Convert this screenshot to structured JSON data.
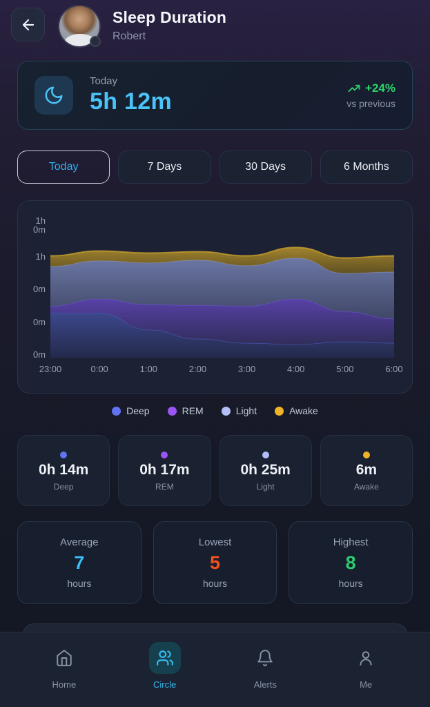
{
  "header": {
    "title": "Sleep Duration",
    "subtitle": "Robert"
  },
  "today_card": {
    "label": "Today",
    "value": "5h 12m",
    "trend": "+24%",
    "trend_caption": "vs previous",
    "trend_color": "#2fd06f",
    "value_color": "#4ac3f8"
  },
  "tabs": {
    "items": [
      {
        "label": "Today",
        "active": true
      },
      {
        "label": "7 Days",
        "active": false
      },
      {
        "label": "30 Days",
        "active": false
      },
      {
        "label": "6 Months",
        "active": false
      }
    ]
  },
  "chart_data": {
    "type": "area",
    "stacked": true,
    "title": "",
    "x": [
      "23:00",
      "0:00",
      "1:00",
      "2:00",
      "3:00",
      "4:00",
      "5:00",
      "6:00"
    ],
    "y_ticks": [
      "1h",
      "0m",
      "1h",
      "0m",
      "0m",
      "0m"
    ],
    "legend_position": "bottom",
    "grid": false,
    "series": [
      {
        "name": "Deep",
        "dot_color": "#6172f3",
        "fill_top": "#3e4a90",
        "fill_bottom": "#252b50",
        "edge": "#4a5ac0",
        "top_fraction": [
          0.32,
          0.32,
          0.2,
          0.135,
          0.105,
          0.095,
          0.115,
          0.105
        ]
      },
      {
        "name": "REM",
        "dot_color": "#9b55f5",
        "fill_top": "#5b43ae",
        "fill_bottom": "#342f60",
        "edge": "#6a4fd0",
        "top_fraction": [
          0.37,
          0.42,
          0.38,
          0.375,
          0.37,
          0.42,
          0.33,
          0.28
        ]
      },
      {
        "name": "Light",
        "dot_color": "#b3c0f8",
        "fill_top": "#707cab",
        "fill_bottom": "#454c6e",
        "edge": "#8a95c4",
        "top_fraction": [
          0.655,
          0.695,
          0.68,
          0.7,
          0.66,
          0.715,
          0.605,
          0.615
        ]
      },
      {
        "name": "Awake",
        "dot_color": "#f0b429",
        "fill_top": "#a8892e",
        "fill_bottom": "#6b581f",
        "edge": "#c79e2b",
        "top_fraction": [
          0.73,
          0.765,
          0.75,
          0.76,
          0.73,
          0.79,
          0.715,
          0.73
        ]
      }
    ]
  },
  "stage_cards": [
    {
      "value": "0h 14m",
      "label": "Deep"
    },
    {
      "value": "0h 17m",
      "label": "REM"
    },
    {
      "value": "0h 25m",
      "label": "Light"
    },
    {
      "value": "6m",
      "label": "Awake"
    }
  ],
  "summary_cards": [
    {
      "label": "Average",
      "value": "7",
      "unit": "hours",
      "color": "#38bdf8"
    },
    {
      "label": "Lowest",
      "value": "5",
      "unit": "hours",
      "color": "#f4511e"
    },
    {
      "label": "Highest",
      "value": "8",
      "unit": "hours",
      "color": "#2ecc71"
    }
  ],
  "nav": {
    "items": [
      {
        "label": "Home",
        "active": false
      },
      {
        "label": "Circle",
        "active": true
      },
      {
        "label": "Alerts",
        "active": false
      },
      {
        "label": "Me",
        "active": false
      }
    ]
  },
  "icons": {
    "back": "arrow-left",
    "header_avatar": "avatar-photo",
    "today": "moon-crescent",
    "trend": "trending-up",
    "nav": [
      "home",
      "users",
      "bell",
      "user"
    ]
  },
  "colors": {
    "accent_cyan": "#3cc0f5",
    "bg_top": "#282141",
    "bg_bottom": "#131722"
  }
}
